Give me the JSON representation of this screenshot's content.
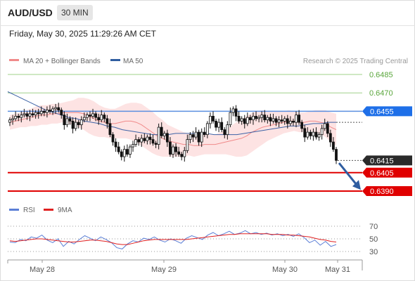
{
  "header": {
    "pair": "AUD/USD",
    "timeframe": "30 MIN",
    "datetime": "Friday, May 30, 2025 11:29:26 AM CET"
  },
  "chart_data": {
    "type": "line",
    "legend": [
      {
        "name": "MA 20 + Bollinger Bands",
        "color": "#f08a8a"
      },
      {
        "name": "MA 50",
        "color": "#2f5da0"
      }
    ],
    "legend_placement": "top-left",
    "credit": "Research © 2025 Trading Central",
    "price_axis": {
      "min": 0.638,
      "max": 0.649
    },
    "levels": [
      {
        "label": "0.6485",
        "value": 0.6485,
        "style": "green"
      },
      {
        "label": "0.6470",
        "value": 0.647,
        "style": "green"
      },
      {
        "label": "0.6455",
        "value": 0.6455,
        "style": "blue"
      },
      {
        "label": "0.6415",
        "value": 0.6415,
        "style": "current"
      },
      {
        "label": "0.6405",
        "value": 0.6405,
        "style": "red"
      },
      {
        "label": "0.6390",
        "value": 0.639,
        "style": "red"
      }
    ],
    "x_labels": [
      "May 28",
      "May 29",
      "May 30",
      "May 31"
    ],
    "forecast_arrow": {
      "from": 0.6414,
      "to": 0.6391,
      "color": "#2f5da0"
    },
    "candles_close": [
      0.6448,
      0.6449,
      0.6451,
      0.645,
      0.6452,
      0.6453,
      0.6451,
      0.6453,
      0.6452,
      0.6454,
      0.6453,
      0.6455,
      0.6454,
      0.6456,
      0.6455,
      0.6457,
      0.6458,
      0.6456,
      0.6452,
      0.6444,
      0.6449,
      0.6447,
      0.6441,
      0.6446,
      0.6444,
      0.6448,
      0.645,
      0.6452,
      0.6451,
      0.6453,
      0.645,
      0.6448,
      0.6452,
      0.6449,
      0.6445,
      0.6436,
      0.643,
      0.6426,
      0.6422,
      0.6418,
      0.6424,
      0.642,
      0.6426,
      0.6428,
      0.6432,
      0.643,
      0.6433,
      0.6431,
      0.6434,
      0.6432,
      0.6429,
      0.6428,
      0.6442,
      0.6435,
      0.6437,
      0.643,
      0.642,
      0.6426,
      0.6422,
      0.642,
      0.6418,
      0.6423,
      0.6432,
      0.6436,
      0.6434,
      0.6438,
      0.643,
      0.6438,
      0.6436,
      0.6445,
      0.6451,
      0.6447,
      0.6442,
      0.6446,
      0.644,
      0.6436,
      0.6444,
      0.6454,
      0.6457,
      0.6451,
      0.6447,
      0.6449,
      0.6445,
      0.645,
      0.6448,
      0.6451,
      0.6449,
      0.645,
      0.6452,
      0.6448,
      0.645,
      0.6447,
      0.6449,
      0.6446,
      0.6448,
      0.6447,
      0.6449,
      0.6445,
      0.6447,
      0.6446,
      0.6452,
      0.6446,
      0.6441,
      0.6434,
      0.6438,
      0.6435,
      0.6438,
      0.6434,
      0.6436,
      0.6441,
      0.6445,
      0.6437,
      0.643,
      0.6424,
      0.6415
    ],
    "ma20": [
      0.6446,
      0.6447,
      0.6448,
      0.6449,
      0.645,
      0.6451,
      0.6452,
      0.6452,
      0.6453,
      0.6453,
      0.6454,
      0.6454,
      0.6454,
      0.6454,
      0.6453,
      0.6451,
      0.6449,
      0.6447,
      0.6446,
      0.6445,
      0.6445,
      0.6446,
      0.6447,
      0.6447,
      0.6446,
      0.6444,
      0.6441,
      0.6438,
      0.6435,
      0.6433,
      0.6431,
      0.643,
      0.6429,
      0.6428,
      0.6428,
      0.6427,
      0.6427,
      0.6428,
      0.6428,
      0.6428,
      0.6429,
      0.643,
      0.6431,
      0.6432,
      0.6433,
      0.6435,
      0.6438,
      0.644,
      0.6442,
      0.6443,
      0.6444,
      0.6445,
      0.6446,
      0.6447,
      0.6447,
      0.6446,
      0.6446,
      0.6447,
      0.6447,
      0.6446,
      0.6445,
      0.6442,
      0.644
    ],
    "ma50": [
      0.6471,
      0.6468,
      0.6465,
      0.6462,
      0.6459,
      0.6456,
      0.6454,
      0.6452,
      0.645,
      0.6449,
      0.6447,
      0.6446,
      0.6445,
      0.6443,
      0.6442,
      0.644,
      0.6439,
      0.6438,
      0.6437,
      0.6436,
      0.6436,
      0.6436,
      0.6437,
      0.6437,
      0.6437,
      0.6437,
      0.6437,
      0.6436,
      0.6436,
      0.6436,
      0.6436,
      0.6437,
      0.6438,
      0.6439,
      0.644,
      0.6441,
      0.6442,
      0.6443,
      0.6443,
      0.6444,
      0.6445,
      0.6445,
      0.6446,
      0.6446
    ],
    "rsi_panel": {
      "legend": [
        {
          "name": "RSI",
          "color": "#5b7fd6"
        },
        {
          "name": "9MA",
          "color": "#e02020"
        }
      ],
      "levels": [
        {
          "label": "70",
          "value": 70
        },
        {
          "label": "50",
          "value": 50
        },
        {
          "label": "30",
          "value": 30
        }
      ],
      "rsi": [
        45,
        44,
        49,
        47,
        53,
        51,
        56,
        48,
        44,
        50,
        38,
        46,
        42,
        49,
        55,
        51,
        47,
        53,
        49,
        44,
        36,
        34,
        42,
        47,
        45,
        51,
        49,
        53,
        48,
        45,
        50,
        47,
        43,
        51,
        55,
        52,
        49,
        56,
        60,
        55,
        58,
        62,
        57,
        59,
        63,
        58,
        60,
        57,
        59,
        56,
        58,
        55,
        57,
        54,
        58,
        52,
        44,
        48,
        40,
        46,
        38,
        41
      ],
      "ma9": [
        47,
        46,
        47,
        48,
        49,
        50,
        50,
        49,
        48,
        47,
        46,
        45,
        45,
        46,
        47,
        48,
        48,
        47,
        46,
        44,
        42,
        41,
        41,
        43,
        45,
        47,
        48,
        49,
        49,
        49,
        49,
        49,
        49,
        49,
        50,
        51,
        52,
        53,
        54,
        55,
        56,
        57,
        57,
        58,
        58,
        58,
        58,
        58,
        58,
        57,
        57,
        57,
        56,
        56,
        55,
        54,
        53,
        51,
        49,
        48,
        46,
        45
      ]
    }
  }
}
